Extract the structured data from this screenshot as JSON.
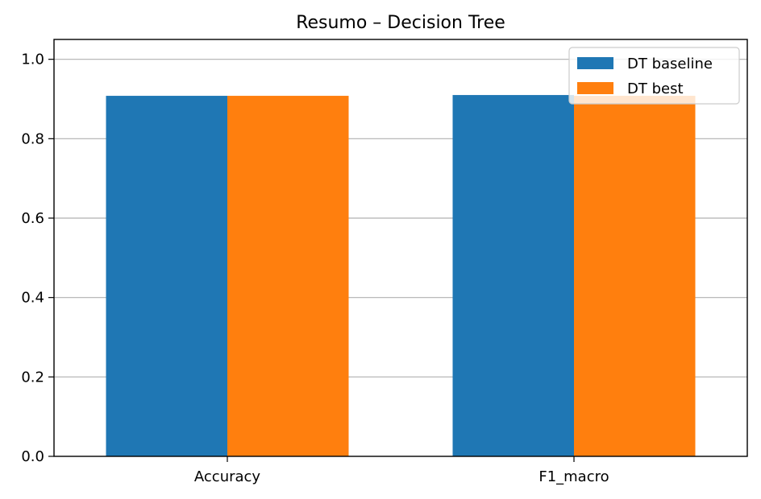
{
  "chart_data": {
    "type": "bar",
    "title": "Resumo – Decision Tree",
    "xlabel": "",
    "ylabel": "",
    "categories": [
      "Accuracy",
      "F1_macro"
    ],
    "series": [
      {
        "name": "DT baseline",
        "values": [
          0.908,
          0.91
        ],
        "color": "#1f77b4"
      },
      {
        "name": "DT best",
        "values": [
          0.908,
          0.908
        ],
        "color": "#ff7f0e"
      }
    ],
    "ylim": [
      0,
      1.05
    ],
    "yticks": [
      "0.0",
      "0.2",
      "0.4",
      "0.6",
      "0.8",
      "1.0"
    ],
    "grid": "y",
    "legend_position": "top-right"
  }
}
